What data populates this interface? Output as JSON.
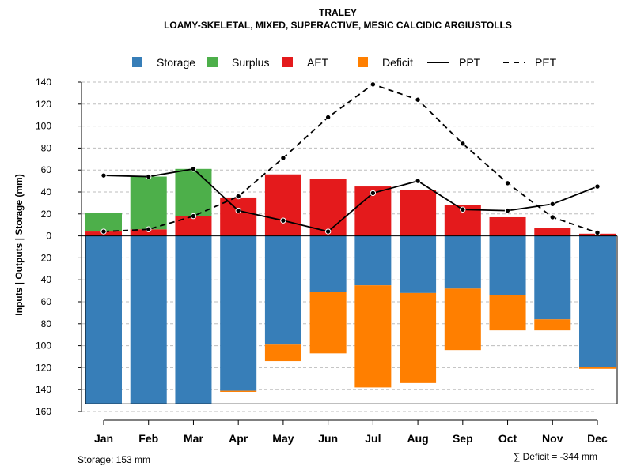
{
  "chart_data": {
    "type": "bar",
    "title": "TRALEY",
    "subtitle": "LOAMY-SKELETAL, MIXED, SUPERACTIVE, MESIC CALCIDIC ARGIUSTOLLS",
    "ylabel": "Inputs | Outputs | Storage    (mm)",
    "ylim": [
      -160,
      140
    ],
    "yticks": [
      140,
      120,
      100,
      80,
      60,
      40,
      20,
      0,
      -20,
      -40,
      -60,
      -80,
      -100,
      -120,
      -140,
      -160
    ],
    "ytick_labels": [
      "140",
      "120",
      "100",
      "80",
      "60",
      "40",
      "20",
      "0",
      "20",
      "40",
      "60",
      "80",
      "100",
      "120",
      "140",
      "160"
    ],
    "grid": true,
    "categories": [
      "Jan",
      "Feb",
      "Mar",
      "Apr",
      "May",
      "Jun",
      "Jul",
      "Aug",
      "Sep",
      "Oct",
      "Nov",
      "Dec"
    ],
    "series": [
      {
        "name": "Storage",
        "color": "#377eb8",
        "values": [
          -153,
          -153,
          -153,
          -141,
          -99,
          -51,
          -45,
          -52,
          -48,
          -54,
          -76,
          -119
        ]
      },
      {
        "name": "Surplus",
        "color": "#4daf4a",
        "values": [
          17,
          48,
          43,
          0,
          0,
          0,
          0,
          0,
          0,
          0,
          0,
          0
        ]
      },
      {
        "name": "AET",
        "color": "#e41a1c",
        "values": [
          4,
          6,
          18,
          35,
          56,
          52,
          45,
          42,
          28,
          17,
          7,
          2
        ]
      },
      {
        "name": "Deficit",
        "color": "#ff7f00",
        "values": [
          0,
          0,
          0,
          -1,
          -15,
          -56,
          -93,
          -82,
          -56,
          -32,
          -10,
          -2
        ]
      }
    ],
    "lines": [
      {
        "name": "PPT",
        "style": "solid",
        "values": [
          55,
          54,
          61,
          23,
          14,
          4,
          39,
          50,
          24,
          23,
          29,
          45
        ]
      },
      {
        "name": "PET",
        "style": "dashed",
        "values": [
          4,
          6,
          18,
          36,
          71,
          108,
          138,
          124,
          84,
          48,
          17,
          3
        ]
      }
    ],
    "legend": [
      "Storage",
      "Surplus",
      "AET",
      "Deficit",
      "PPT",
      "PET"
    ],
    "legend_position": "top-center",
    "storage_note": "Storage: 153 mm",
    "deficit_note": "∑ Deficit = -344 mm"
  }
}
